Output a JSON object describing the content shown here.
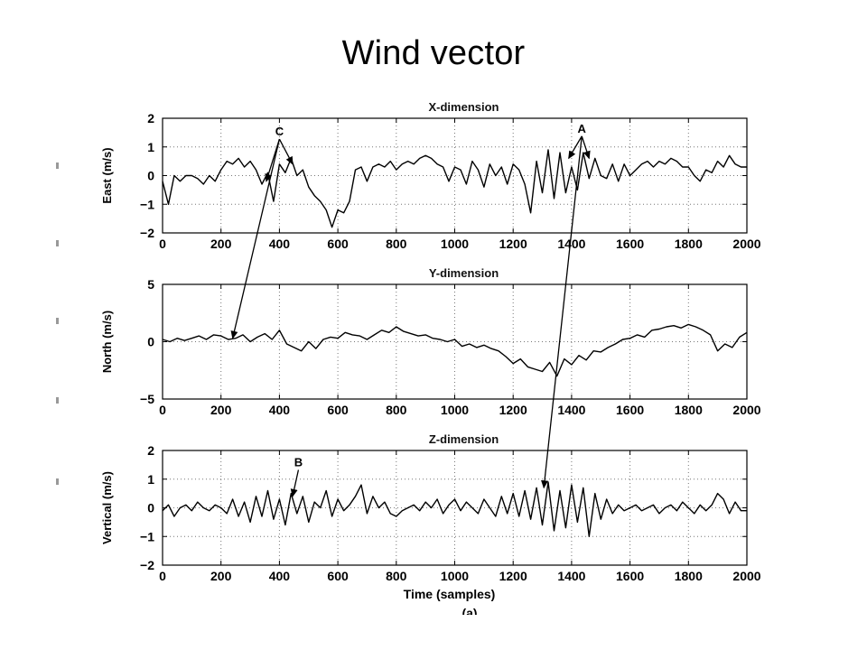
{
  "slide": {
    "title": "Wind vector"
  },
  "chart_data": [
    {
      "type": "line",
      "title": "X-dimension",
      "ylabel": "East (m/s)",
      "xlabel": "",
      "xlim": [
        0,
        2000
      ],
      "ylim": [
        -2,
        2
      ],
      "xticks": [
        0,
        200,
        400,
        600,
        800,
        1000,
        1200,
        1400,
        1600,
        1800,
        2000
      ],
      "yticks": [
        -2,
        -1,
        0,
        1,
        2
      ],
      "grid": true,
      "color": "#000000",
      "series": [
        {
          "x": [
            0,
            20,
            40,
            60,
            80,
            100,
            120,
            140,
            160,
            180,
            200,
            220,
            240,
            260,
            280,
            300,
            320,
            340,
            360,
            380,
            400,
            420,
            440,
            460,
            480,
            500,
            520,
            540,
            560,
            580,
            600,
            620,
            640,
            660,
            680,
            700,
            720,
            740,
            760,
            780,
            800,
            820,
            840,
            860,
            880,
            900,
            920,
            940,
            960,
            980,
            1000,
            1020,
            1040,
            1060,
            1080,
            1100,
            1120,
            1140,
            1160,
            1180,
            1200,
            1220,
            1240,
            1260,
            1280,
            1300,
            1320,
            1340,
            1360,
            1380,
            1400,
            1420,
            1440,
            1460,
            1480,
            1500,
            1520,
            1540,
            1560,
            1580,
            1600,
            1620,
            1640,
            1660,
            1680,
            1700,
            1720,
            1740,
            1760,
            1780,
            1800,
            1820,
            1840,
            1860,
            1880,
            1900,
            1920,
            1940,
            1960,
            1980,
            2000
          ],
          "y": [
            -0.2,
            -1.0,
            0.0,
            -0.2,
            0.0,
            0.0,
            -0.1,
            -0.3,
            0.0,
            -0.2,
            0.2,
            0.5,
            0.4,
            0.6,
            0.3,
            0.5,
            0.2,
            -0.3,
            0.1,
            -0.9,
            0.4,
            0.1,
            0.6,
            0.0,
            0.2,
            -0.4,
            -0.7,
            -0.9,
            -1.2,
            -1.8,
            -1.2,
            -1.3,
            -0.9,
            0.2,
            0.3,
            -0.2,
            0.3,
            0.4,
            0.3,
            0.5,
            0.2,
            0.4,
            0.5,
            0.4,
            0.6,
            0.7,
            0.6,
            0.4,
            0.3,
            -0.2,
            0.3,
            0.2,
            -0.3,
            0.5,
            0.2,
            -0.4,
            0.4,
            0.0,
            0.3,
            -0.3,
            0.4,
            0.2,
            -0.3,
            -1.3,
            0.5,
            -0.6,
            0.9,
            -0.8,
            0.8,
            -0.6,
            0.3,
            -0.5,
            0.8,
            -0.1,
            0.6,
            0.0,
            -0.1,
            0.4,
            -0.2,
            0.4,
            0.0,
            0.2,
            0.4,
            0.5,
            0.3,
            0.5,
            0.4,
            0.6,
            0.5,
            0.3,
            0.3,
            0.0,
            -0.2,
            0.2,
            0.1,
            0.5,
            0.3,
            0.7,
            0.4,
            0.3,
            0.3
          ]
        }
      ],
      "annotations": [
        {
          "text": "C",
          "x": 400,
          "y": 1.4,
          "arrows_to": [
            [
              355,
              -0.2
            ],
            [
              445,
              0.4
            ],
            [
              240,
              0.3
            ]
          ]
        },
        {
          "text": "A",
          "x": 1435,
          "y": 1.5,
          "arrows_to": [
            [
              1390,
              0.6
            ],
            [
              1460,
              0.6
            ],
            [
              1305,
              0.7
            ]
          ]
        }
      ]
    },
    {
      "type": "line",
      "title": "Y-dimension",
      "ylabel": "North (m/s)",
      "xlabel": "",
      "xlim": [
        0,
        2000
      ],
      "ylim": [
        -5,
        5
      ],
      "xticks": [
        0,
        200,
        400,
        600,
        800,
        1000,
        1200,
        1400,
        1600,
        1800,
        2000
      ],
      "yticks": [
        -5,
        0,
        5
      ],
      "grid": true,
      "color": "#000000",
      "series": [
        {
          "x": [
            0,
            25,
            50,
            75,
            100,
            125,
            150,
            175,
            200,
            225,
            250,
            275,
            300,
            325,
            350,
            375,
            400,
            425,
            450,
            475,
            500,
            525,
            550,
            575,
            600,
            625,
            650,
            675,
            700,
            725,
            750,
            775,
            800,
            825,
            850,
            875,
            900,
            925,
            950,
            975,
            1000,
            1025,
            1050,
            1075,
            1100,
            1125,
            1150,
            1175,
            1200,
            1225,
            1250,
            1275,
            1300,
            1325,
            1350,
            1375,
            1400,
            1425,
            1450,
            1475,
            1500,
            1525,
            1550,
            1575,
            1600,
            1625,
            1650,
            1675,
            1700,
            1725,
            1750,
            1775,
            1800,
            1825,
            1850,
            1875,
            1900,
            1925,
            1950,
            1975,
            2000
          ],
          "y": [
            0.2,
            0.0,
            0.3,
            0.1,
            0.3,
            0.5,
            0.2,
            0.6,
            0.5,
            0.2,
            0.3,
            0.6,
            0.0,
            0.4,
            0.7,
            0.2,
            1.0,
            -0.2,
            -0.5,
            -0.8,
            0.0,
            -0.6,
            0.2,
            0.4,
            0.3,
            0.8,
            0.6,
            0.5,
            0.2,
            0.6,
            1.0,
            0.8,
            1.3,
            0.9,
            0.7,
            0.5,
            0.6,
            0.3,
            0.2,
            0.0,
            0.2,
            -0.4,
            -0.2,
            -0.5,
            -0.3,
            -0.6,
            -0.8,
            -1.3,
            -1.9,
            -1.5,
            -2.2,
            -2.4,
            -2.6,
            -1.8,
            -3.0,
            -1.5,
            -2.0,
            -1.2,
            -1.6,
            -0.8,
            -0.9,
            -0.5,
            -0.2,
            0.2,
            0.3,
            0.6,
            0.4,
            1.0,
            1.1,
            1.3,
            1.4,
            1.2,
            1.5,
            1.3,
            1.0,
            0.6,
            -0.8,
            -0.2,
            -0.5,
            0.4,
            0.8
          ]
        }
      ],
      "annotations": []
    },
    {
      "type": "line",
      "title": "Z-dimension",
      "ylabel": "Vertical (m/s)",
      "xlabel": "Time (samples)",
      "xlim": [
        0,
        2000
      ],
      "ylim": [
        -2,
        2
      ],
      "xticks": [
        0,
        200,
        400,
        600,
        800,
        1000,
        1200,
        1400,
        1600,
        1800,
        2000
      ],
      "yticks": [
        -2,
        -1,
        0,
        1,
        2
      ],
      "grid": true,
      "color": "#000000",
      "series": [
        {
          "x": [
            0,
            20,
            40,
            60,
            80,
            100,
            120,
            140,
            160,
            180,
            200,
            220,
            240,
            260,
            280,
            300,
            320,
            340,
            360,
            380,
            400,
            420,
            440,
            460,
            480,
            500,
            520,
            540,
            560,
            580,
            600,
            620,
            640,
            660,
            680,
            700,
            720,
            740,
            760,
            780,
            800,
            820,
            840,
            860,
            880,
            900,
            920,
            940,
            960,
            980,
            1000,
            1020,
            1040,
            1060,
            1080,
            1100,
            1120,
            1140,
            1160,
            1180,
            1200,
            1220,
            1240,
            1260,
            1280,
            1300,
            1320,
            1340,
            1360,
            1380,
            1400,
            1420,
            1440,
            1460,
            1480,
            1500,
            1520,
            1540,
            1560,
            1580,
            1600,
            1620,
            1640,
            1660,
            1680,
            1700,
            1720,
            1740,
            1760,
            1780,
            1800,
            1820,
            1840,
            1860,
            1880,
            1900,
            1920,
            1940,
            1960,
            1980,
            2000
          ],
          "y": [
            -0.1,
            0.1,
            -0.3,
            0.0,
            0.1,
            -0.1,
            0.2,
            0.0,
            -0.1,
            0.1,
            0.0,
            -0.2,
            0.3,
            -0.3,
            0.2,
            -0.5,
            0.4,
            -0.3,
            0.6,
            -0.4,
            0.3,
            -0.6,
            0.5,
            -0.2,
            0.4,
            -0.5,
            0.2,
            0.0,
            0.6,
            -0.3,
            0.3,
            -0.1,
            0.1,
            0.4,
            0.8,
            -0.2,
            0.4,
            0.0,
            0.2,
            -0.2,
            -0.3,
            -0.1,
            0.0,
            0.1,
            -0.1,
            0.2,
            0.0,
            0.3,
            -0.2,
            0.1,
            0.3,
            -0.1,
            0.2,
            0.0,
            -0.2,
            0.3,
            0.0,
            -0.3,
            0.4,
            -0.2,
            0.5,
            -0.3,
            0.6,
            -0.4,
            0.7,
            -0.6,
            0.9,
            -0.8,
            0.6,
            -0.7,
            0.8,
            -0.5,
            0.7,
            -1.0,
            0.5,
            -0.4,
            0.3,
            -0.2,
            0.1,
            -0.1,
            0.0,
            0.1,
            -0.1,
            0.0,
            0.1,
            -0.2,
            0.0,
            0.1,
            -0.1,
            0.2,
            0.0,
            -0.2,
            0.1,
            -0.1,
            0.1,
            0.5,
            0.3,
            -0.2,
            0.2,
            -0.1,
            -0.1
          ]
        }
      ],
      "annotations": [
        {
          "text": "B",
          "x": 465,
          "y": 1.45,
          "arrows_to": [
            [
              445,
              0.4
            ]
          ]
        }
      ]
    }
  ],
  "bottom_caption": "(a)"
}
